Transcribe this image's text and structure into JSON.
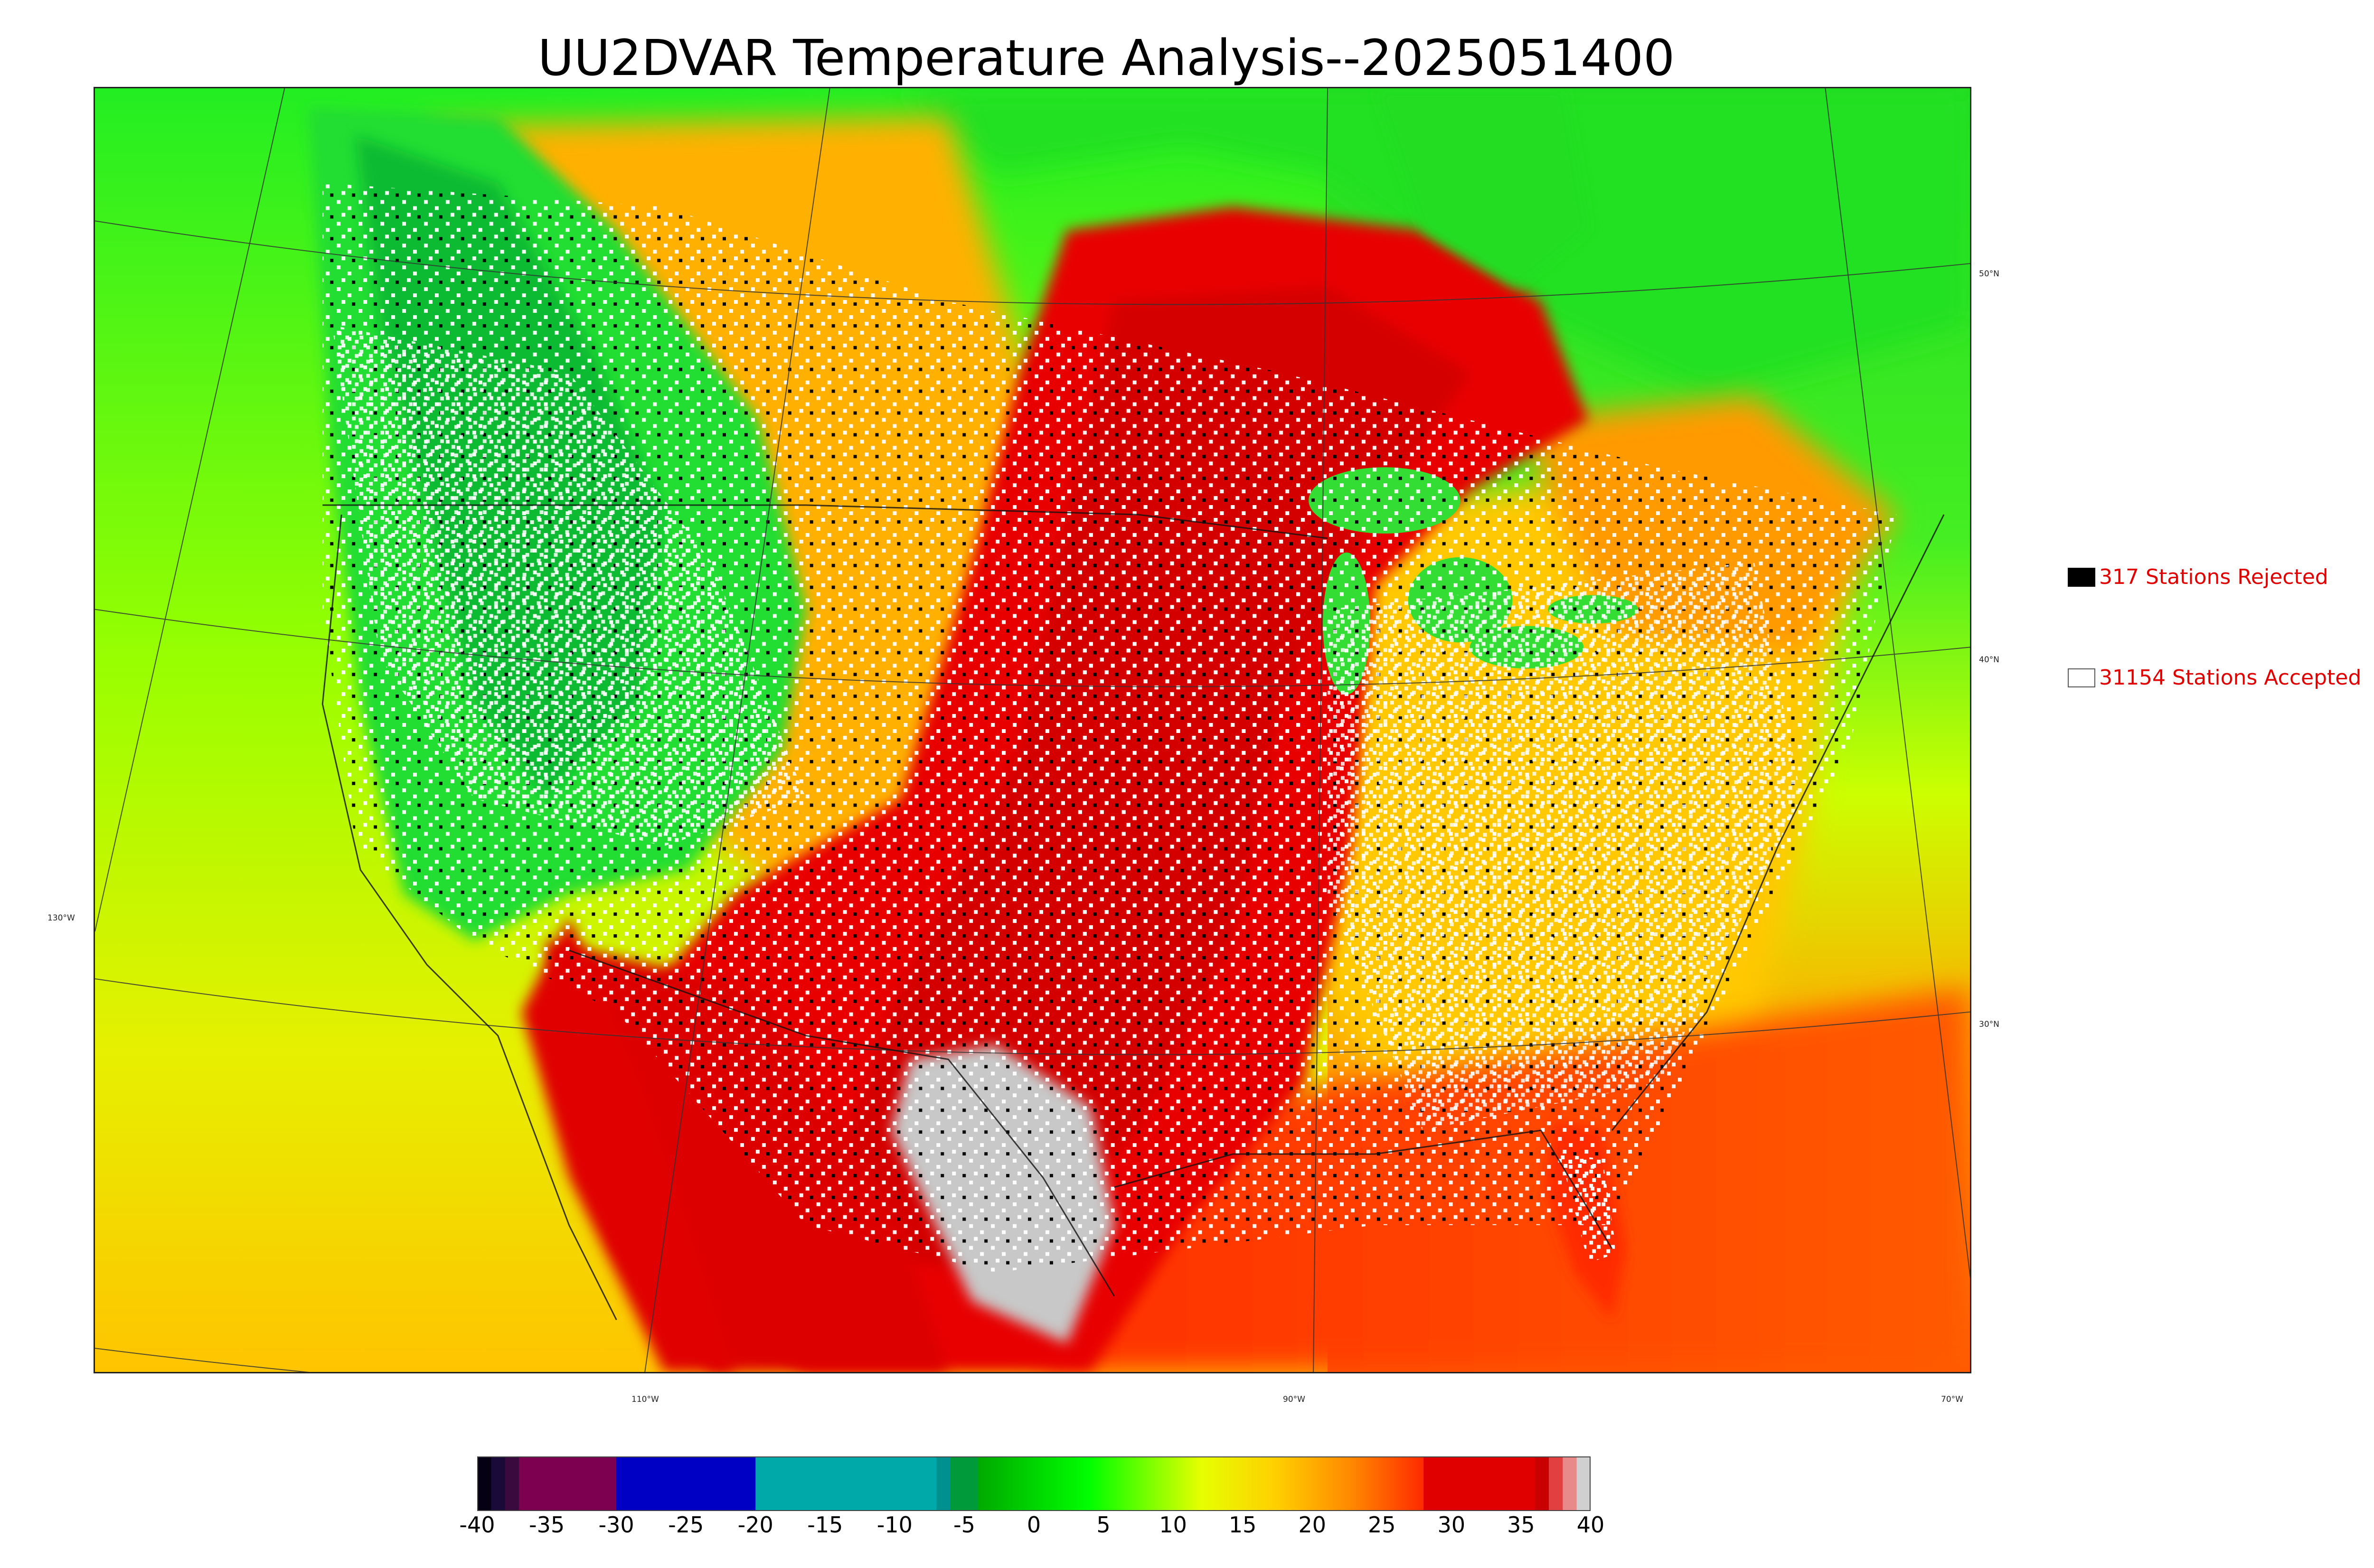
{
  "title": "UU2DVAR Temperature Analysis--2025051400",
  "map": {
    "lat_labels": [
      {
        "id": "lat-50",
        "text": "50°N"
      },
      {
        "id": "lat-40",
        "text": "40°N"
      },
      {
        "id": "lat-30",
        "text": "30°N"
      }
    ],
    "lon_labels": [
      {
        "id": "lon-130",
        "text": "130°W"
      },
      {
        "id": "lon-110",
        "text": "110°W"
      },
      {
        "id": "lon-90",
        "text": "90°W"
      },
      {
        "id": "lon-70",
        "text": "70°W"
      }
    ]
  },
  "legend": {
    "rejected": {
      "label": "317 Stations Rejected",
      "color": "#000000"
    },
    "accepted": {
      "label": "31154 Stations Accepted",
      "color": "#ffffff"
    }
  },
  "colorbar": {
    "min": -40,
    "max": 40,
    "tick_labels": [
      "-40",
      "-35",
      "-30",
      "-25",
      "-20",
      "-15",
      "-10",
      "-5",
      "0",
      "5",
      "10",
      "15",
      "20",
      "25",
      "30",
      "35",
      "40"
    ],
    "segments": [
      {
        "from": -40,
        "to": -39,
        "color": "#050014"
      },
      {
        "from": -39,
        "to": -38,
        "color": "#1a0a3a"
      },
      {
        "from": -38,
        "to": -37,
        "color": "#3a0a3e"
      },
      {
        "from": -37,
        "to": -30,
        "color": "#7d0050"
      },
      {
        "from": -30,
        "to": -20,
        "color": "#0000c4"
      },
      {
        "from": -20,
        "to": -7,
        "color": "#00a9a9"
      },
      {
        "from": -7,
        "to": -6,
        "color": "#009090"
      },
      {
        "from": -6,
        "to": -4,
        "color": "#009a3a"
      },
      {
        "from": -4,
        "to": 12,
        "gradient": [
          "#00aa00",
          "#00ff00",
          "#e6ff00"
        ]
      },
      {
        "from": 12,
        "to": 28,
        "gradient": [
          "#e6ff00",
          "#ffd000",
          "#ff8a00",
          "#ff2a00"
        ]
      },
      {
        "from": 28,
        "to": 36,
        "color": "#e00000"
      },
      {
        "from": 36,
        "to": 37,
        "color": "#c80000"
      },
      {
        "from": 37,
        "to": 38,
        "color": "#e04040"
      },
      {
        "from": 38,
        "to": 39,
        "color": "#e88a8a"
      },
      {
        "from": 39,
        "to": 40,
        "color": "#d0d0d0"
      }
    ]
  },
  "colors": {
    "cold_green": "#00cc00",
    "warm_yellow": "#ffd400",
    "hot_red": "#e60000",
    "extreme_gray": "#c8c8c8"
  }
}
